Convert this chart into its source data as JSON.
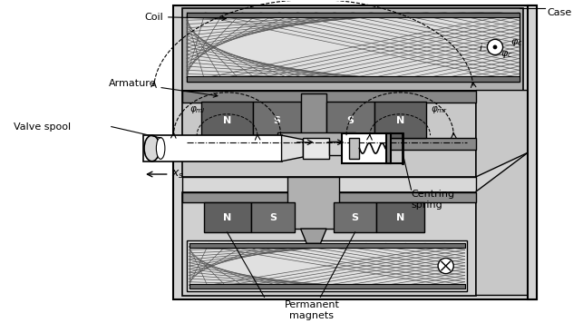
{
  "figsize": [
    6.43,
    3.56
  ],
  "dpi": 100,
  "bg_white": "#ffffff",
  "bg_light": "#e8e8e8",
  "bg_med": "#d0d0d0",
  "bg_dark": "#b8b8b8",
  "gray_armature": "#a0a0a0",
  "gray_dark": "#606060",
  "gray_med": "#808080",
  "gray_light": "#c8c8c8",
  "black": "#000000",
  "white": "#ffffff",
  "labels": {
    "coil": "Coil",
    "armature": "Armature",
    "valve_spool": "Valve spool",
    "xs": "$x_s$",
    "case": "Case",
    "centring_spring": "Centring\nspring",
    "permanent_magnets": "Permanent\nmagnets",
    "phi_c": "$\\varphi_c$",
    "phi_ml": "$\\varphi_{ml}$",
    "phi_mr": "$\\varphi_{mr}$",
    "i": "$i$",
    "N": "N",
    "S": "S"
  }
}
